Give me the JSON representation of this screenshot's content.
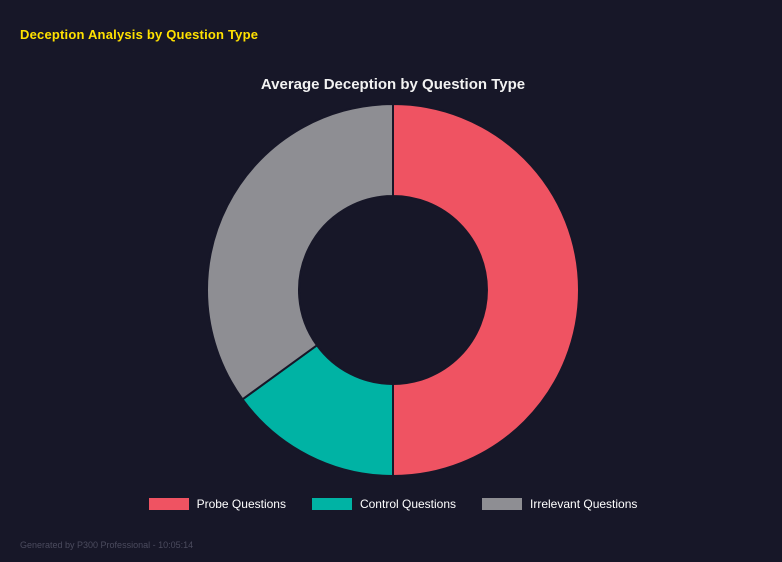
{
  "header": {
    "title": "Deception Analysis by Question Type",
    "accent_color": "#ffe100"
  },
  "footer": {
    "text": "Generated by P300 Professional - 10:05:14"
  },
  "chart_data": {
    "type": "pie",
    "variant": "donut",
    "title": "Average Deception by Question Type",
    "categories": [
      "Probe Questions",
      "Control Questions",
      "Irrelevant Questions"
    ],
    "values": [
      50,
      15,
      35
    ],
    "colors": [
      "#ef5362",
      "#00b3a4",
      "#8e8e93"
    ],
    "start_angle_deg": 0,
    "direction": "clockwise",
    "inner_radius_ratio": 0.505,
    "legend_position": "bottom",
    "background": "#171728",
    "title_color": "#f2f2f2",
    "legend_text_color": "#ffffff"
  }
}
